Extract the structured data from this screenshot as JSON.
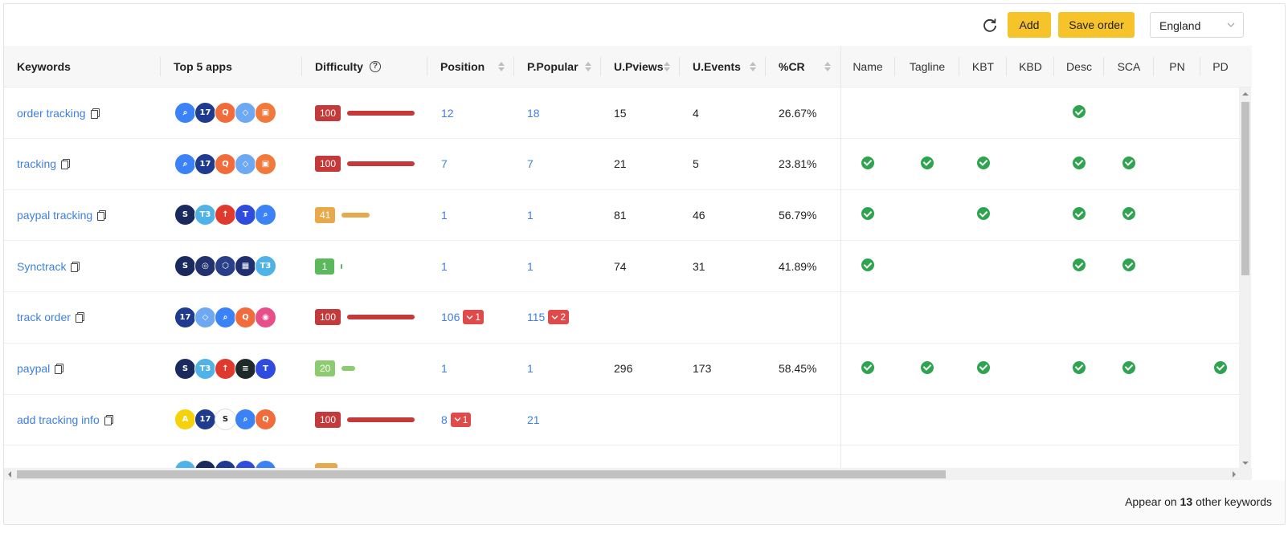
{
  "toolbar": {
    "add_label": "Add",
    "save_label": "Save order",
    "country": "England"
  },
  "columns": {
    "keywords": "Keywords",
    "top_apps": "Top 5 apps",
    "difficulty": "Difficulty",
    "position": "Position",
    "p_popular": "P.Popular",
    "u_pviews": "U.Pviews",
    "u_events": "U.Events",
    "cr": "%CR",
    "checks": [
      "Name",
      "Tagline",
      "KBT",
      "KBD",
      "Desc",
      "SCA",
      "PN",
      "PD"
    ]
  },
  "colors": {
    "accent_yellow": "#f7c32b",
    "link_blue": "#3f7fe0",
    "check_green": "#2ea44f",
    "diff_high": "#c43a3a",
    "diff_medium": "#e8a94a",
    "diff_low": "#5cb85c",
    "diff_low2": "#8ccc6e",
    "drop_red": "#e04a4a"
  },
  "rows": [
    {
      "keyword": "order tracking",
      "apps": [
        {
          "icon": "magnifier-app-icon",
          "bg": "#3b82f6",
          "glyph": "⌕"
        },
        {
          "icon": "17track-app-icon",
          "bg": "#1f3b8f",
          "glyph": "17"
        },
        {
          "icon": "orange-q-app-icon",
          "bg": "#f26b3a",
          "glyph": "Q"
        },
        {
          "icon": "cube-app-icon",
          "bg": "#6ea8f2",
          "glyph": "◇"
        },
        {
          "icon": "parcel-app-icon",
          "bg": "#f2793c",
          "glyph": "▣"
        }
      ],
      "difficulty": 100,
      "difficulty_color": "#c43a3a",
      "position": "12",
      "position_drop": "",
      "p_popular": "18",
      "p_popular_drop": "",
      "u_pviews": "15",
      "u_events": "4",
      "cr": "26.67%",
      "checks": [
        false,
        false,
        false,
        false,
        true,
        false,
        false,
        false
      ]
    },
    {
      "keyword": "tracking",
      "apps": [
        {
          "icon": "magnifier-app-icon",
          "bg": "#3b82f6",
          "glyph": "⌕"
        },
        {
          "icon": "17track-app-icon",
          "bg": "#1f3b8f",
          "glyph": "17"
        },
        {
          "icon": "orange-q-app-icon",
          "bg": "#f26b3a",
          "glyph": "Q"
        },
        {
          "icon": "cube-app-icon",
          "bg": "#6ea8f2",
          "glyph": "◇"
        },
        {
          "icon": "parcel-app-icon",
          "bg": "#f2793c",
          "glyph": "▣"
        }
      ],
      "difficulty": 100,
      "difficulty_color": "#c43a3a",
      "position": "7",
      "position_drop": "",
      "p_popular": "7",
      "p_popular_drop": "",
      "u_pviews": "21",
      "u_events": "5",
      "cr": "23.81%",
      "checks": [
        true,
        true,
        true,
        false,
        true,
        true,
        false,
        false
      ]
    },
    {
      "keyword": "paypal tracking",
      "apps": [
        {
          "icon": "synctrack-app-icon",
          "bg": "#1a2a5e",
          "glyph": "S"
        },
        {
          "icon": "t3-app-icon",
          "bg": "#4fb3e8",
          "glyph": "T3"
        },
        {
          "icon": "red-arrow-app-icon",
          "bg": "#e03a2f",
          "glyph": "↑"
        },
        {
          "icon": "t-app-icon",
          "bg": "#2f4be0",
          "glyph": "T"
        },
        {
          "icon": "magnifier-app-icon",
          "bg": "#3b82f6",
          "glyph": "⌕"
        }
      ],
      "difficulty": 41,
      "difficulty_color": "#e8a94a",
      "position": "1",
      "position_drop": "",
      "p_popular": "1",
      "p_popular_drop": "",
      "u_pviews": "81",
      "u_events": "46",
      "cr": "56.79%",
      "checks": [
        true,
        false,
        true,
        false,
        true,
        true,
        false,
        false
      ]
    },
    {
      "keyword": "Synctrack",
      "apps": [
        {
          "icon": "synctrack-app-icon",
          "bg": "#1a2a5e",
          "glyph": "S"
        },
        {
          "icon": "location-app-icon",
          "bg": "#22326e",
          "glyph": "◎"
        },
        {
          "icon": "hex-app-icon",
          "bg": "#2a3f8a",
          "glyph": "⬡"
        },
        {
          "icon": "calendar-app-icon",
          "bg": "#1f3070",
          "glyph": "▦"
        },
        {
          "icon": "t3-app-icon",
          "bg": "#4fb3e8",
          "glyph": "T3"
        }
      ],
      "difficulty": 1,
      "difficulty_color": "#5cb85c",
      "position": "1",
      "position_drop": "",
      "p_popular": "1",
      "p_popular_drop": "",
      "u_pviews": "74",
      "u_events": "31",
      "cr": "41.89%",
      "checks": [
        true,
        false,
        false,
        false,
        true,
        true,
        false,
        false
      ]
    },
    {
      "keyword": "track order",
      "apps": [
        {
          "icon": "17track-app-icon",
          "bg": "#1f3b8f",
          "glyph": "17"
        },
        {
          "icon": "cube-app-icon",
          "bg": "#6ea8f2",
          "glyph": "◇"
        },
        {
          "icon": "magnifier-app-icon",
          "bg": "#3b82f6",
          "glyph": "⌕"
        },
        {
          "icon": "orange-q-app-icon",
          "bg": "#f26b3a",
          "glyph": "Q"
        },
        {
          "icon": "pin-app-icon",
          "bg": "#e84f8a",
          "glyph": "◉"
        }
      ],
      "difficulty": 100,
      "difficulty_color": "#c43a3a",
      "position": "106",
      "position_drop": "1",
      "p_popular": "115",
      "p_popular_drop": "2",
      "u_pviews": "",
      "u_events": "",
      "cr": "",
      "checks": [
        false,
        false,
        false,
        false,
        false,
        false,
        false,
        false
      ]
    },
    {
      "keyword": "paypal",
      "apps": [
        {
          "icon": "synctrack-app-icon",
          "bg": "#1a2a5e",
          "glyph": "S"
        },
        {
          "icon": "t3-app-icon",
          "bg": "#4fb3e8",
          "glyph": "T3"
        },
        {
          "icon": "red-arrow-app-icon",
          "bg": "#e03a2f",
          "glyph": "↑"
        },
        {
          "icon": "dark-green-app-icon",
          "bg": "#1e2a2a",
          "glyph": "≡"
        },
        {
          "icon": "t-app-icon",
          "bg": "#2f4be0",
          "glyph": "T"
        }
      ],
      "difficulty": 20,
      "difficulty_color": "#8ccc6e",
      "position": "1",
      "position_drop": "",
      "p_popular": "1",
      "p_popular_drop": "",
      "u_pviews": "296",
      "u_events": "173",
      "cr": "58.45%",
      "checks": [
        true,
        true,
        true,
        false,
        true,
        true,
        false,
        true
      ]
    },
    {
      "keyword": "add tracking info",
      "apps": [
        {
          "icon": "aftership-app-icon",
          "bg": "#f5d20a",
          "glyph": "A"
        },
        {
          "icon": "17track-app-icon",
          "bg": "#1f3b8f",
          "glyph": "17"
        },
        {
          "icon": "shipping-s-app-icon",
          "bg": "#ffffff",
          "glyph": "S"
        },
        {
          "icon": "magnifier-app-icon",
          "bg": "#3b82f6",
          "glyph": "⌕"
        },
        {
          "icon": "orange-q-app-icon",
          "bg": "#f26b3a",
          "glyph": "Q"
        }
      ],
      "difficulty": 100,
      "difficulty_color": "#c43a3a",
      "position": "8",
      "position_drop": "1",
      "p_popular": "21",
      "p_popular_drop": "",
      "u_pviews": "",
      "u_events": "",
      "cr": "",
      "checks": [
        false,
        false,
        false,
        false,
        false,
        false,
        false,
        false
      ]
    }
  ],
  "footer": {
    "prefix": "Appear on",
    "count": "13",
    "suffix": "other keywords"
  }
}
